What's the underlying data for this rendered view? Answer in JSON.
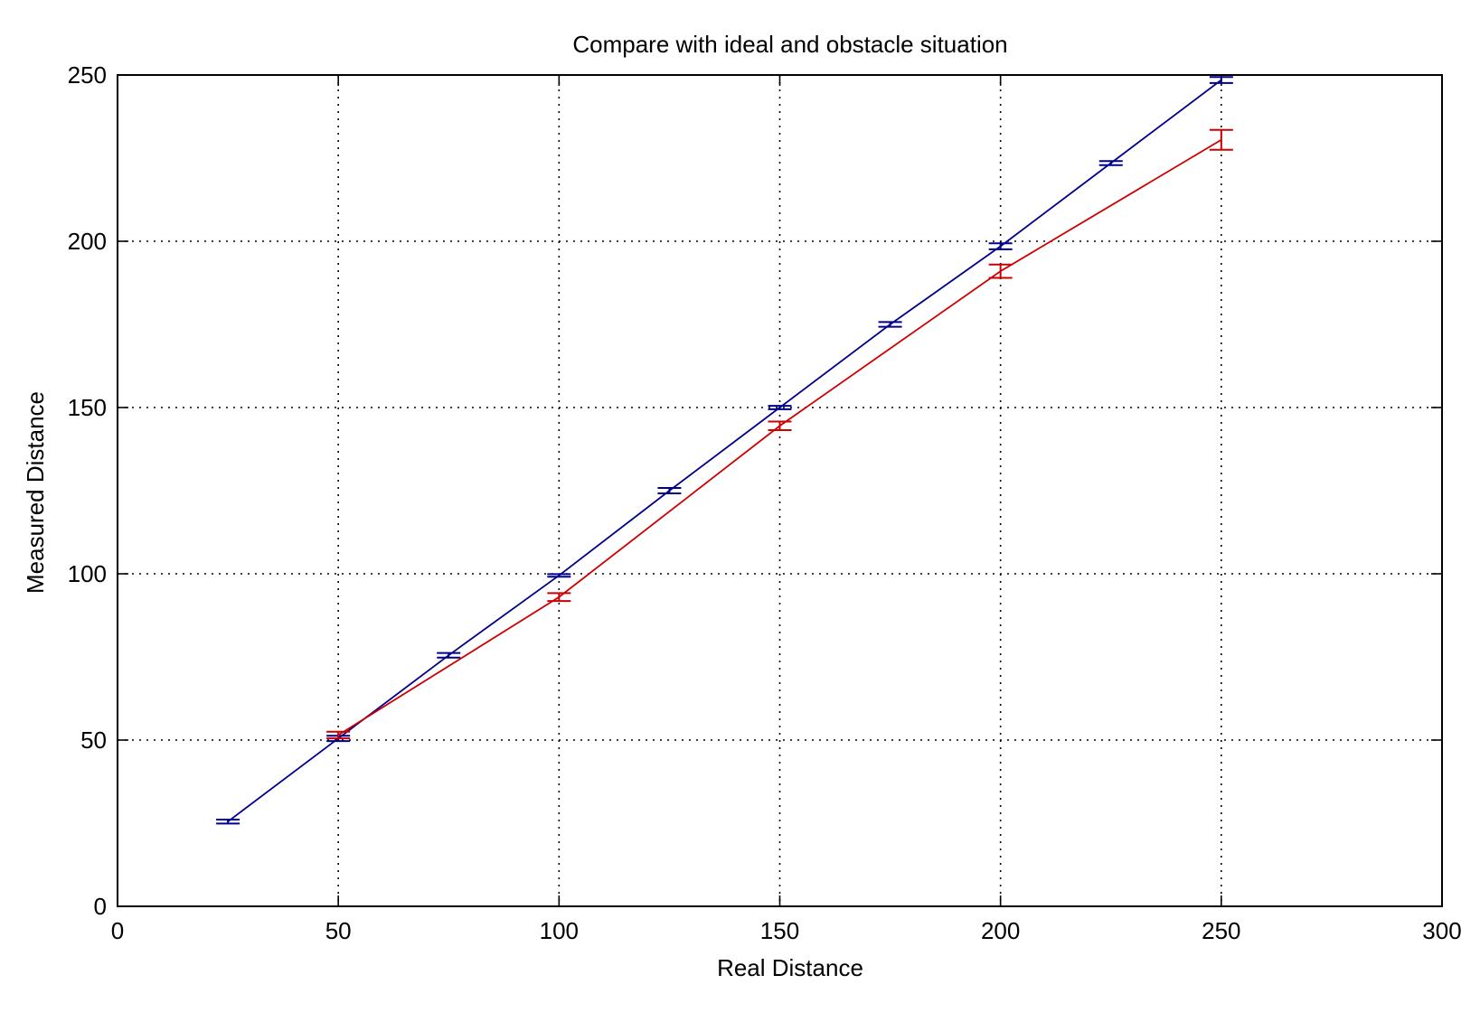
{
  "chart_data": {
    "type": "line",
    "title": "Compare with ideal and obstacle situation",
    "xlabel": "Real Distance",
    "ylabel": "Measured Distance",
    "xlim": [
      0,
      300
    ],
    "ylim": [
      0,
      250
    ],
    "xticks": [
      0,
      50,
      100,
      150,
      200,
      250,
      300
    ],
    "yticks": [
      0,
      50,
      100,
      150,
      200,
      250
    ],
    "grid": true,
    "grid_style": "dotted",
    "series": [
      {
        "color": "#00008b",
        "x": [
          25,
          50,
          75,
          100,
          125,
          150,
          175,
          200,
          225,
          250
        ],
        "y": [
          25.5,
          50.5,
          75.5,
          99.5,
          125,
          150,
          175,
          198.5,
          223.5,
          248.5
        ],
        "err": [
          0.6,
          0.8,
          0.7,
          0.4,
          0.8,
          0.5,
          0.7,
          0.9,
          0.6,
          0.9
        ]
      },
      {
        "color": "#cc0000",
        "x": [
          50,
          100,
          150,
          200,
          250
        ],
        "y": [
          51.5,
          93,
          144.5,
          191,
          230.5
        ],
        "err": [
          1.0,
          1.2,
          1.3,
          2.0,
          3.0
        ]
      }
    ]
  }
}
